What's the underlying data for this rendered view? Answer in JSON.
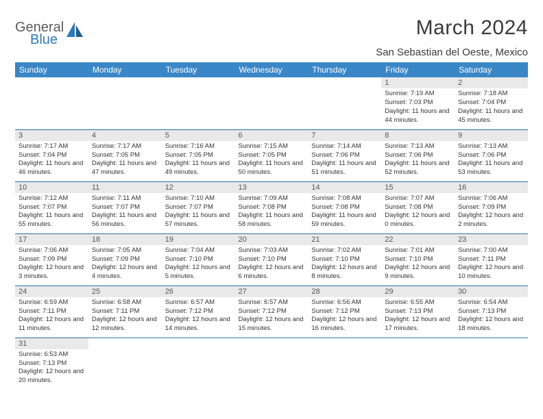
{
  "logo": {
    "text1": "General",
    "text2": "Blue"
  },
  "title": "March 2024",
  "location": "San Sebastian del Oeste, Mexico",
  "colors": {
    "header_bg": "#3a87c8",
    "row_border": "#2f6fa8",
    "daynum_bg": "#e9e9e9",
    "logo_gray": "#5a5a5a",
    "logo_blue": "#2a7abf"
  },
  "weekdays": [
    "Sunday",
    "Monday",
    "Tuesday",
    "Wednesday",
    "Thursday",
    "Friday",
    "Saturday"
  ],
  "weeks": [
    [
      {
        "n": "",
        "sr": "",
        "ss": "",
        "dl": ""
      },
      {
        "n": "",
        "sr": "",
        "ss": "",
        "dl": ""
      },
      {
        "n": "",
        "sr": "",
        "ss": "",
        "dl": ""
      },
      {
        "n": "",
        "sr": "",
        "ss": "",
        "dl": ""
      },
      {
        "n": "",
        "sr": "",
        "ss": "",
        "dl": ""
      },
      {
        "n": "1",
        "sr": "Sunrise: 7:19 AM",
        "ss": "Sunset: 7:03 PM",
        "dl": "Daylight: 11 hours and 44 minutes."
      },
      {
        "n": "2",
        "sr": "Sunrise: 7:18 AM",
        "ss": "Sunset: 7:04 PM",
        "dl": "Daylight: 11 hours and 45 minutes."
      }
    ],
    [
      {
        "n": "3",
        "sr": "Sunrise: 7:17 AM",
        "ss": "Sunset: 7:04 PM",
        "dl": "Daylight: 11 hours and 46 minutes."
      },
      {
        "n": "4",
        "sr": "Sunrise: 7:17 AM",
        "ss": "Sunset: 7:05 PM",
        "dl": "Daylight: 11 hours and 47 minutes."
      },
      {
        "n": "5",
        "sr": "Sunrise: 7:16 AM",
        "ss": "Sunset: 7:05 PM",
        "dl": "Daylight: 11 hours and 49 minutes."
      },
      {
        "n": "6",
        "sr": "Sunrise: 7:15 AM",
        "ss": "Sunset: 7:05 PM",
        "dl": "Daylight: 11 hours and 50 minutes."
      },
      {
        "n": "7",
        "sr": "Sunrise: 7:14 AM",
        "ss": "Sunset: 7:06 PM",
        "dl": "Daylight: 11 hours and 51 minutes."
      },
      {
        "n": "8",
        "sr": "Sunrise: 7:13 AM",
        "ss": "Sunset: 7:06 PM",
        "dl": "Daylight: 11 hours and 52 minutes."
      },
      {
        "n": "9",
        "sr": "Sunrise: 7:13 AM",
        "ss": "Sunset: 7:06 PM",
        "dl": "Daylight: 11 hours and 53 minutes."
      }
    ],
    [
      {
        "n": "10",
        "sr": "Sunrise: 7:12 AM",
        "ss": "Sunset: 7:07 PM",
        "dl": "Daylight: 11 hours and 55 minutes."
      },
      {
        "n": "11",
        "sr": "Sunrise: 7:11 AM",
        "ss": "Sunset: 7:07 PM",
        "dl": "Daylight: 11 hours and 56 minutes."
      },
      {
        "n": "12",
        "sr": "Sunrise: 7:10 AM",
        "ss": "Sunset: 7:07 PM",
        "dl": "Daylight: 11 hours and 57 minutes."
      },
      {
        "n": "13",
        "sr": "Sunrise: 7:09 AM",
        "ss": "Sunset: 7:08 PM",
        "dl": "Daylight: 11 hours and 58 minutes."
      },
      {
        "n": "14",
        "sr": "Sunrise: 7:08 AM",
        "ss": "Sunset: 7:08 PM",
        "dl": "Daylight: 11 hours and 59 minutes."
      },
      {
        "n": "15",
        "sr": "Sunrise: 7:07 AM",
        "ss": "Sunset: 7:08 PM",
        "dl": "Daylight: 12 hours and 0 minutes."
      },
      {
        "n": "16",
        "sr": "Sunrise: 7:06 AM",
        "ss": "Sunset: 7:09 PM",
        "dl": "Daylight: 12 hours and 2 minutes."
      }
    ],
    [
      {
        "n": "17",
        "sr": "Sunrise: 7:06 AM",
        "ss": "Sunset: 7:09 PM",
        "dl": "Daylight: 12 hours and 3 minutes."
      },
      {
        "n": "18",
        "sr": "Sunrise: 7:05 AM",
        "ss": "Sunset: 7:09 PM",
        "dl": "Daylight: 12 hours and 4 minutes."
      },
      {
        "n": "19",
        "sr": "Sunrise: 7:04 AM",
        "ss": "Sunset: 7:10 PM",
        "dl": "Daylight: 12 hours and 5 minutes."
      },
      {
        "n": "20",
        "sr": "Sunrise: 7:03 AM",
        "ss": "Sunset: 7:10 PM",
        "dl": "Daylight: 12 hours and 6 minutes."
      },
      {
        "n": "21",
        "sr": "Sunrise: 7:02 AM",
        "ss": "Sunset: 7:10 PM",
        "dl": "Daylight: 12 hours and 8 minutes."
      },
      {
        "n": "22",
        "sr": "Sunrise: 7:01 AM",
        "ss": "Sunset: 7:10 PM",
        "dl": "Daylight: 12 hours and 9 minutes."
      },
      {
        "n": "23",
        "sr": "Sunrise: 7:00 AM",
        "ss": "Sunset: 7:11 PM",
        "dl": "Daylight: 12 hours and 10 minutes."
      }
    ],
    [
      {
        "n": "24",
        "sr": "Sunrise: 6:59 AM",
        "ss": "Sunset: 7:11 PM",
        "dl": "Daylight: 12 hours and 11 minutes."
      },
      {
        "n": "25",
        "sr": "Sunrise: 6:58 AM",
        "ss": "Sunset: 7:11 PM",
        "dl": "Daylight: 12 hours and 12 minutes."
      },
      {
        "n": "26",
        "sr": "Sunrise: 6:57 AM",
        "ss": "Sunset: 7:12 PM",
        "dl": "Daylight: 12 hours and 14 minutes."
      },
      {
        "n": "27",
        "sr": "Sunrise: 6:57 AM",
        "ss": "Sunset: 7:12 PM",
        "dl": "Daylight: 12 hours and 15 minutes."
      },
      {
        "n": "28",
        "sr": "Sunrise: 6:56 AM",
        "ss": "Sunset: 7:12 PM",
        "dl": "Daylight: 12 hours and 16 minutes."
      },
      {
        "n": "29",
        "sr": "Sunrise: 6:55 AM",
        "ss": "Sunset: 7:13 PM",
        "dl": "Daylight: 12 hours and 17 minutes."
      },
      {
        "n": "30",
        "sr": "Sunrise: 6:54 AM",
        "ss": "Sunset: 7:13 PM",
        "dl": "Daylight: 12 hours and 18 minutes."
      }
    ],
    [
      {
        "n": "31",
        "sr": "Sunrise: 6:53 AM",
        "ss": "Sunset: 7:13 PM",
        "dl": "Daylight: 12 hours and 20 minutes."
      },
      {
        "n": "",
        "sr": "",
        "ss": "",
        "dl": ""
      },
      {
        "n": "",
        "sr": "",
        "ss": "",
        "dl": ""
      },
      {
        "n": "",
        "sr": "",
        "ss": "",
        "dl": ""
      },
      {
        "n": "",
        "sr": "",
        "ss": "",
        "dl": ""
      },
      {
        "n": "",
        "sr": "",
        "ss": "",
        "dl": ""
      },
      {
        "n": "",
        "sr": "",
        "ss": "",
        "dl": ""
      }
    ]
  ]
}
